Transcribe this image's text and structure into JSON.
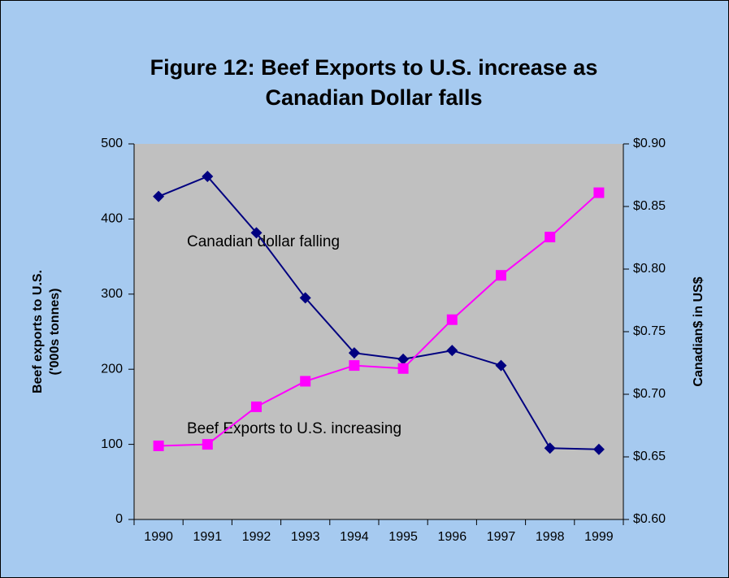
{
  "chart_data": {
    "type": "line",
    "title": [
      "Figure 12:  Beef Exports to U.S. increase as",
      "Canadian Dollar falls"
    ],
    "y_label": [
      "Beef exports to U.S.",
      "('000s tonnes)"
    ],
    "y2_label": "Canadian$ in US$",
    "categories": [
      "1990",
      "1991",
      "1992",
      "1993",
      "1994",
      "1995",
      "1996",
      "1997",
      "1998",
      "1999"
    ],
    "series": [
      {
        "name": "Canadian dollar",
        "color": "#000080",
        "marker": "diamond",
        "axis": "y2",
        "values": [
          0.858,
          0.874,
          0.829,
          0.777,
          0.733,
          0.728,
          0.735,
          0.723,
          0.657,
          0.656
        ]
      },
      {
        "name": "Beef exports",
        "color": "#ff00ff",
        "marker": "square",
        "axis": "y",
        "values": [
          98,
          100,
          150,
          184,
          205,
          201,
          266,
          325,
          376,
          435
        ]
      }
    ],
    "annotations": [
      "Canadian dollar falling",
      "Beef Exports to U.S. increasing"
    ],
    "ylim": [
      0,
      500
    ],
    "yticks": [
      0,
      100,
      200,
      300,
      400,
      500
    ],
    "y2lim": [
      0.6,
      0.9
    ],
    "y2ticks": [
      {
        "value": 0.6,
        "label": "$0.60"
      },
      {
        "value": 0.65,
        "label": "$0.65"
      },
      {
        "value": 0.7,
        "label": "$0.70"
      },
      {
        "value": 0.75,
        "label": "$0.75"
      },
      {
        "value": 0.8,
        "label": "$0.80"
      },
      {
        "value": 0.85,
        "label": "$0.85"
      },
      {
        "value": 0.9,
        "label": "$0.90"
      }
    ],
    "grid": false
  }
}
